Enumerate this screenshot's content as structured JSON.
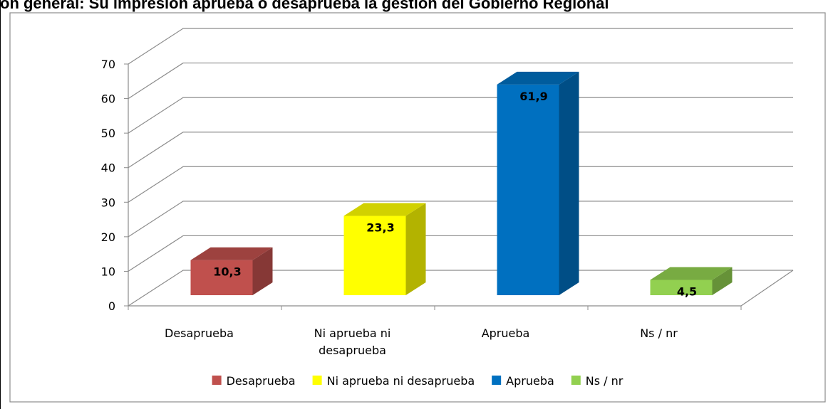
{
  "chart_data": {
    "type": "bar3d",
    "title": "on general: Su impresión aprueba o desaprueba la gestión del Gobierno Regional",
    "categories": [
      "Desaprueba",
      "Ni aprueba ni desaprueba",
      "Aprueba",
      "Ns / nr"
    ],
    "series": [
      {
        "name": "Desaprueba",
        "color": "#c0504d"
      },
      {
        "name": "Ni aprueba ni desaprueba",
        "color": "#ffff00"
      },
      {
        "name": "Aprueba",
        "color": "#0070c0"
      },
      {
        "name": "Ns / nr",
        "color": "#92d050"
      }
    ],
    "values": [
      10.3,
      23.3,
      61.9,
      4.5
    ],
    "value_labels": [
      "10,3",
      "23,3",
      "61,9",
      "4,5"
    ],
    "ylim": [
      0,
      70
    ],
    "yticks": [
      0,
      10,
      20,
      30,
      40,
      50,
      60,
      70
    ],
    "grid": true,
    "legend": "bottom"
  }
}
